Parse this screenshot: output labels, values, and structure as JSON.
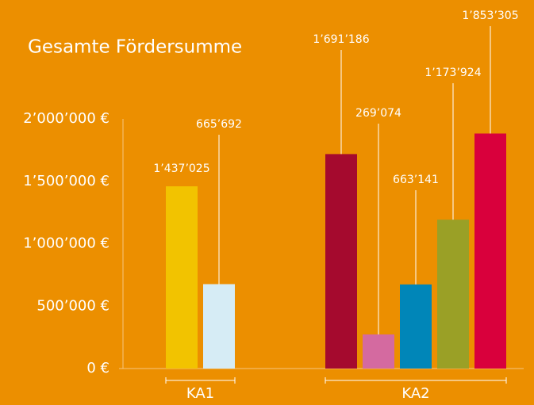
{
  "chart_data": {
    "type": "bar",
    "title": "Gesamte Fördersumme",
    "groups": [
      {
        "name": "KA1",
        "values": [
          1437025,
          665692
        ],
        "value_labels": [
          "1’437’025",
          "665’692"
        ],
        "colors": [
          "#f2c300",
          "#d6ecf5"
        ]
      },
      {
        "name": "KA2",
        "values": [
          1691186,
          269074,
          663141,
          1173924,
          1853305
        ],
        "value_labels": [
          "1’691’186",
          "269’074",
          "663’141",
          "1’173’924",
          "1’853’305"
        ],
        "colors": [
          "#a50a2e",
          "#d46aa0",
          "#0086b8",
          "#9aa026",
          "#d9003c"
        ]
      }
    ],
    "ylim": [
      0,
      2000000
    ],
    "yticks": [
      {
        "value": 0,
        "label": "0 €"
      },
      {
        "value": 500000,
        "label": "500’000 €"
      },
      {
        "value": 1000000,
        "label": "1’000’000 €"
      },
      {
        "value": 1500000,
        "label": "1’500’000 €"
      },
      {
        "value": 2000000,
        "label": "2’000’000 €"
      }
    ],
    "grid": false
  }
}
